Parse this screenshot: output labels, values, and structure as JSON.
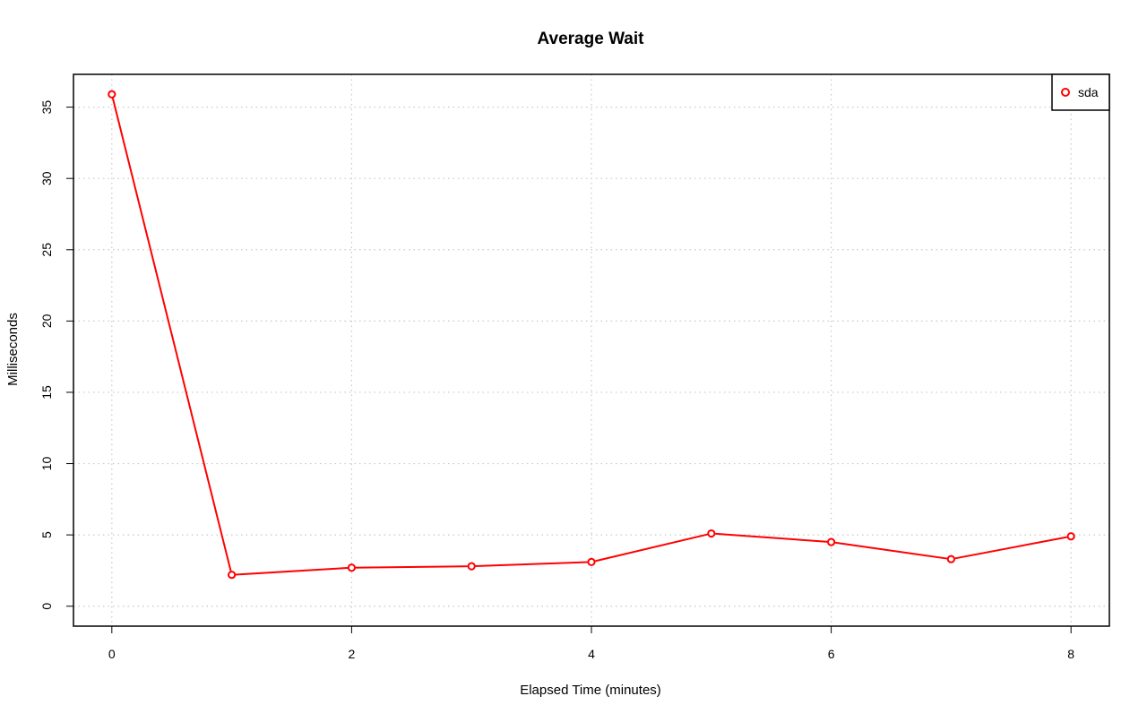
{
  "chart_data": {
    "type": "line",
    "title": "Average Wait",
    "xlabel": "Elapsed Time (minutes)",
    "ylabel": "Milliseconds",
    "x": [
      0,
      1,
      2,
      3,
      4,
      5,
      6,
      7,
      8
    ],
    "series": [
      {
        "name": "sda",
        "color": "#ff0000",
        "values": [
          35.9,
          2.2,
          2.7,
          2.8,
          3.1,
          5.1,
          4.5,
          3.3,
          4.9
        ]
      }
    ],
    "xlim": [
      -0.32,
      8.32
    ],
    "ylim": [
      -1.4,
      37.3
    ],
    "xticks": [
      0,
      2,
      4,
      6,
      8
    ],
    "xtick_labels": [
      "0",
      "2",
      "4",
      "6",
      "8"
    ],
    "yticks": [
      0,
      5,
      10,
      15,
      20,
      25,
      30,
      35
    ],
    "ytick_labels": [
      "0",
      "5",
      "10",
      "15",
      "20",
      "25",
      "30",
      "35"
    ],
    "grid": true,
    "grid_x": [
      0,
      2,
      4,
      6,
      8
    ],
    "legend_position": "top-right",
    "marker": "open-circle"
  }
}
